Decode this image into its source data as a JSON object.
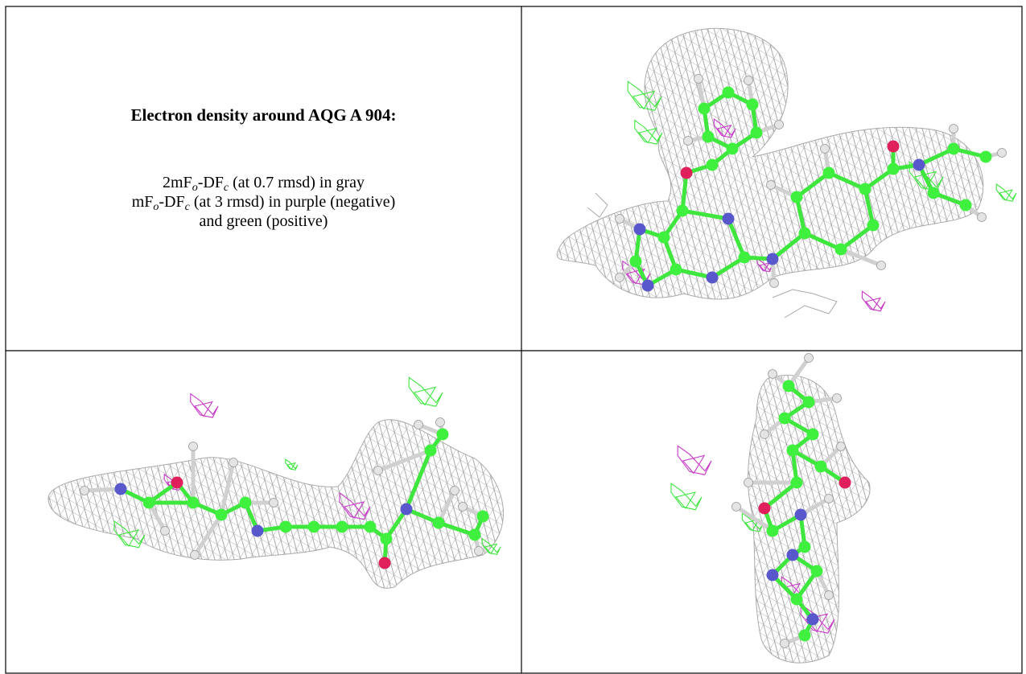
{
  "title": "Electron density around AQG A 904:",
  "legend": [
    [
      {
        "text": "2mF"
      },
      {
        "sub": "o"
      },
      {
        "text": "-DF"
      },
      {
        "sub": "c"
      },
      {
        "text": " (at 0.7 rmsd) in gray"
      }
    ],
    [
      {
        "text": "mF"
      },
      {
        "sub": "o"
      },
      {
        "text": "-DF"
      },
      {
        "sub": "c"
      },
      {
        "text": " (at 3 rmsd) in purple (negative)"
      }
    ],
    [
      {
        "text": "and green (positive)"
      }
    ]
  ]
}
